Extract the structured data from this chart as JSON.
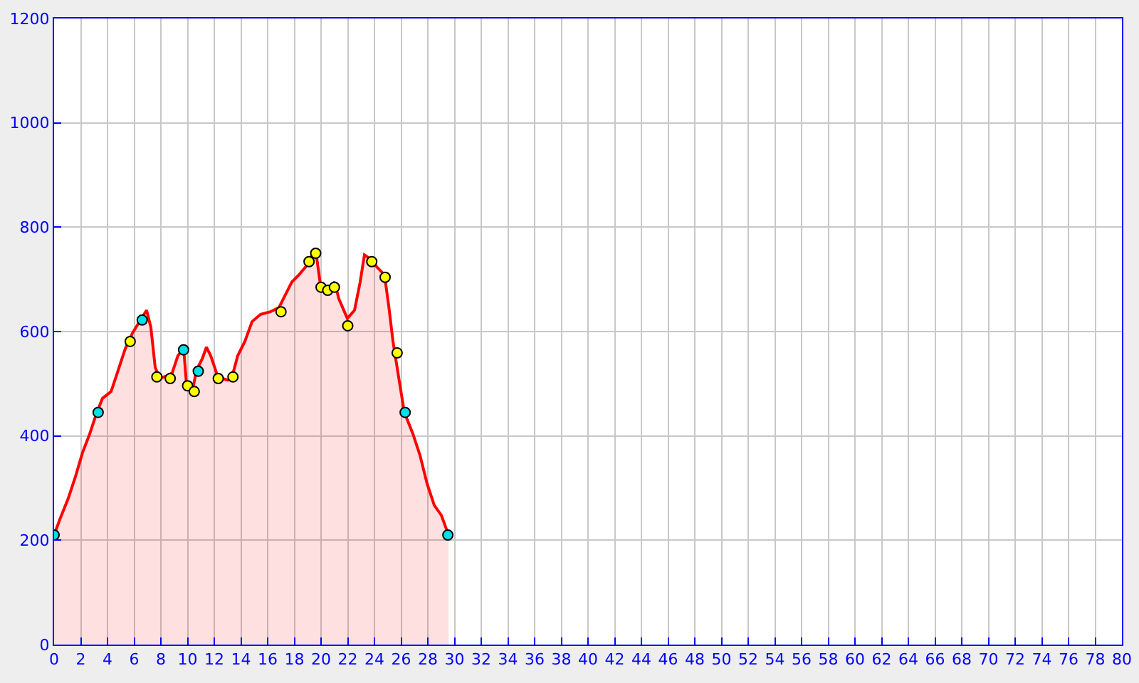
{
  "chart_data": {
    "type": "area",
    "xlim": [
      0,
      80
    ],
    "ylim": [
      0,
      1200
    ],
    "xticks": [
      0,
      2,
      4,
      6,
      8,
      10,
      12,
      14,
      16,
      18,
      20,
      22,
      24,
      26,
      28,
      30,
      32,
      34,
      36,
      38,
      40,
      42,
      44,
      46,
      48,
      50,
      52,
      54,
      56,
      58,
      60,
      62,
      64,
      66,
      68,
      70,
      72,
      74,
      76,
      78,
      80
    ],
    "yticks": [
      0,
      200,
      400,
      600,
      800,
      1000,
      1200
    ],
    "grid": true,
    "legend": false,
    "series": [
      {
        "color": "#ff0000",
        "marker": "none",
        "x": [
          0,
          0.43,
          1.07,
          1.6,
          2.13,
          2.67,
          3.2,
          3.63,
          4.27,
          4.8,
          5.33,
          5.87,
          6.4,
          6.93,
          7.25,
          7.57,
          7.89,
          8.43,
          8.85,
          9.28,
          9.71,
          9.92,
          10.35,
          10.67,
          11.1,
          11.41,
          11.73,
          12.27,
          13.0,
          13.33,
          13.76,
          14.29,
          14.83,
          15.47,
          16.21,
          16.85,
          17.28,
          17.81,
          18.35,
          18.88,
          19.31,
          19.63,
          19.95,
          20.37,
          21.01,
          21.33,
          21.97,
          22.51,
          22.93,
          23.25,
          23.68,
          24.21,
          24.75,
          25.07,
          25.39,
          25.81,
          26.24,
          26.88,
          27.41,
          27.95,
          28.48,
          29.01,
          29.55
        ],
        "values": [
          210,
          240,
          281,
          322,
          368,
          404,
          445,
          472,
          485,
          526,
          567,
          597,
          619,
          641,
          608,
          532,
          510,
          515,
          521,
          554,
          567,
          499,
          485,
          526,
          548,
          570,
          554,
          513,
          507,
          513,
          554,
          581,
          619,
          633,
          638,
          646,
          668,
          695,
          709,
          725,
          745,
          750,
          690,
          674,
          695,
          663,
          625,
          641,
          695,
          747,
          739,
          723,
          709,
          649,
          581,
          513,
          445,
          404,
          363,
          308,
          267,
          248,
          210
        ]
      },
      {
        "type": "scatter",
        "color": "#ffff00",
        "marker": "circle",
        "x": [
          5.7,
          7.7,
          8.7,
          10.0,
          10.5,
          12.3,
          13.4,
          17.0,
          19.1,
          19.6,
          20.0,
          20.5,
          21.0,
          22.0,
          23.8,
          24.8,
          25.7
        ],
        "values": [
          581,
          513,
          510,
          496,
          485,
          510,
          513,
          638,
          734,
          750,
          685,
          679,
          685,
          611,
          734,
          704,
          559
        ]
      },
      {
        "type": "scatter",
        "color": "#00e0e8",
        "marker": "circle",
        "x": [
          0,
          3.3,
          6.6,
          9.7,
          10.8,
          26.3,
          29.5
        ],
        "values": [
          210,
          445,
          622,
          565,
          524,
          445,
          210
        ]
      }
    ]
  }
}
